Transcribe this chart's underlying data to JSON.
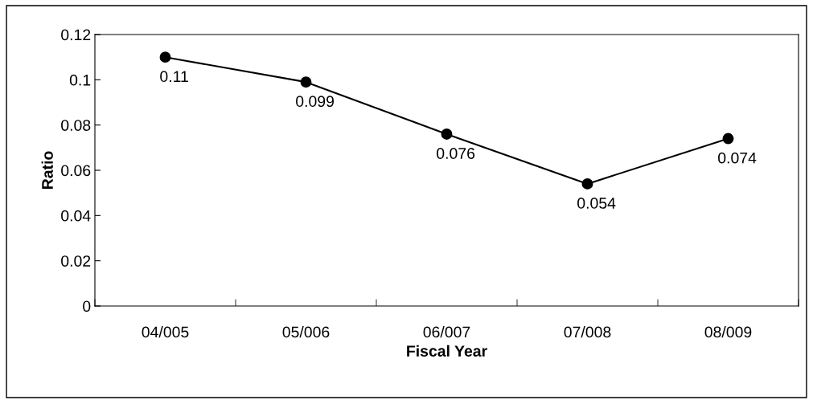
{
  "chart_data": {
    "type": "line",
    "xlabel": "Fiscal Year",
    "ylabel": "Ratio",
    "categories": [
      "04/005",
      "05/006",
      "06/007",
      "07/008",
      "08/009"
    ],
    "series": [
      {
        "color": "#000000",
        "values": [
          0.11,
          0.099,
          0.076,
          0.054,
          0.074
        ]
      }
    ],
    "ylim": [
      0,
      0.12
    ],
    "yticks": [
      0,
      0.02,
      0.04,
      0.06,
      0.08,
      0.1,
      0.12
    ],
    "data_labels": true,
    "grid": false,
    "legend": false,
    "marker": "circle",
    "line_style": "solid"
  }
}
